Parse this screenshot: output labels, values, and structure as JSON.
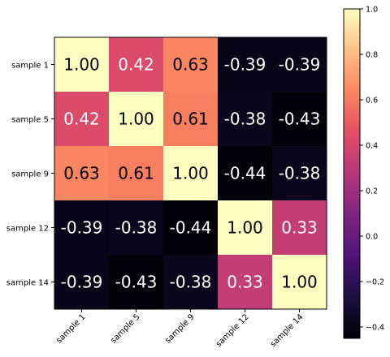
{
  "chart_data": {
    "type": "heatmap",
    "title": "",
    "xlabel": "",
    "ylabel": "",
    "x_labels": [
      "sample 1",
      "sample 5",
      "sample 9",
      "sample 12",
      "sample 14"
    ],
    "y_labels": [
      "sample 1",
      "sample 5",
      "sample 9",
      "sample 12",
      "sample 14"
    ],
    "values": [
      [
        1.0,
        0.42,
        0.63,
        -0.39,
        -0.39
      ],
      [
        0.42,
        1.0,
        0.61,
        -0.38,
        -0.43
      ],
      [
        0.63,
        0.61,
        1.0,
        -0.44,
        -0.38
      ],
      [
        -0.39,
        -0.38,
        -0.44,
        1.0,
        0.33
      ],
      [
        -0.39,
        -0.43,
        -0.38,
        0.33,
        1.0
      ]
    ],
    "cell_labels": [
      [
        "1.00",
        "0.42",
        "0.63",
        "-0.39",
        "-0.39"
      ],
      [
        "0.42",
        "1.00",
        "0.61",
        "-0.38",
        "-0.43"
      ],
      [
        "0.63",
        "0.61",
        "1.00",
        "-0.44",
        "-0.38"
      ],
      [
        "-0.39",
        "-0.38",
        "-0.44",
        "1.00",
        "0.33"
      ],
      [
        "-0.39",
        "-0.43",
        "-0.38",
        "0.33",
        "1.00"
      ]
    ],
    "colormap": "magma",
    "color_range": [
      -0.45,
      1.0
    ],
    "colorbar_ticks": [
      1.0,
      0.8,
      0.6,
      0.4,
      0.2,
      0.0,
      -0.2,
      -0.4
    ],
    "colorbar_tick_labels": [
      "1.0",
      "0.8",
      "0.6",
      "0.4",
      "0.2",
      "0.0",
      "−0.2",
      "−0.4"
    ],
    "colorbar_position": "right",
    "grid": false
  }
}
